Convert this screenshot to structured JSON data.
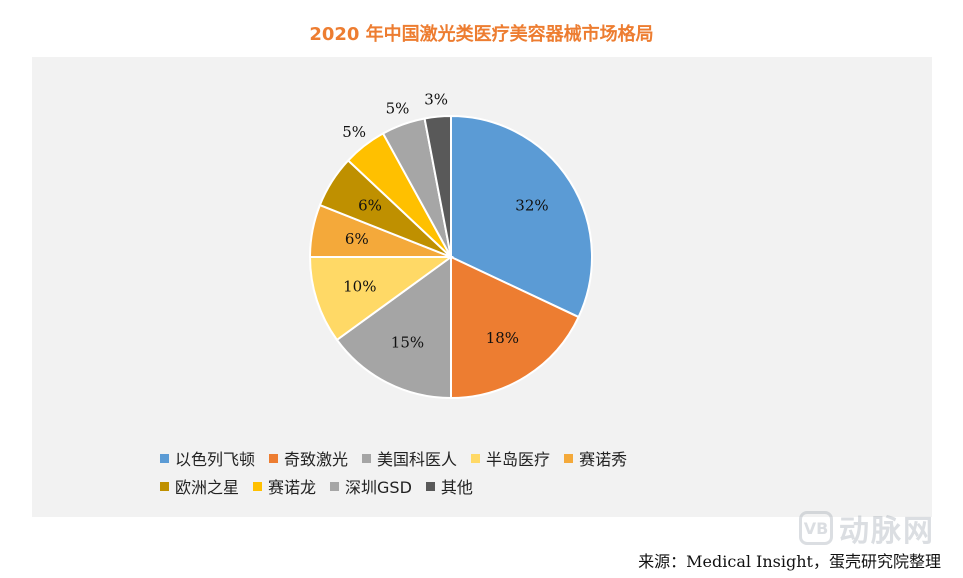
{
  "chart_data": {
    "type": "pie",
    "title": "2020 年中国激光类医疗美容器械市场格局",
    "categories": [
      "以色列飞顿",
      "奇致激光",
      "美国科医人",
      "半岛医疗",
      "赛诺秀",
      "欧洲之星",
      "赛诺龙",
      "深圳GSD",
      "其他"
    ],
    "values": [
      32,
      18,
      15,
      10,
      6,
      6,
      5,
      5,
      3
    ],
    "labels": [
      "32%",
      "18%",
      "15%",
      "10%",
      "6%",
      "6%",
      "5%",
      "5%",
      "3%"
    ],
    "colors": [
      "#5b9bd5",
      "#ed7d31",
      "#a5a5a5",
      "#ffd966",
      "#f4a93a",
      "#bf9000",
      "#ffc000",
      "#a6a6a6",
      "#595959"
    ],
    "legend_position": "bottom"
  },
  "source": "来源：Medical Insight，蛋壳研究院整理",
  "watermark": {
    "logo": "VB",
    "text": "动脉网"
  }
}
